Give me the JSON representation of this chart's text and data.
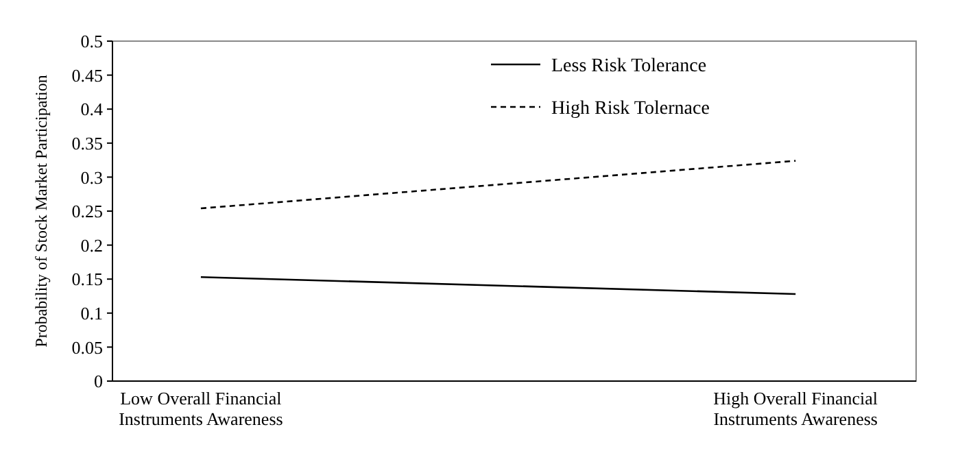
{
  "chart_data": {
    "type": "line",
    "ylabel": "Probability of Stock Market Participation",
    "categories": [
      "Low Overall Financial Instruments Awareness",
      "High Overall Financial Instruments Awareness"
    ],
    "series": [
      {
        "name": "Less Risk Tolerance",
        "color": "#000000",
        "values": [
          0.153,
          0.128
        ],
        "line_style": "solid"
      },
      {
        "name": "High Risk Tolernace",
        "color": "#000000",
        "values": [
          0.254,
          0.324
        ],
        "line_style": "dashed"
      }
    ],
    "ylim": [
      0,
      0.5
    ],
    "yticks": [
      0,
      0.05,
      0.1,
      0.15,
      0.2,
      0.25,
      0.3,
      0.35,
      0.4,
      0.45,
      0.5
    ],
    "grid": false,
    "legend": "top right",
    "marker": "none"
  }
}
